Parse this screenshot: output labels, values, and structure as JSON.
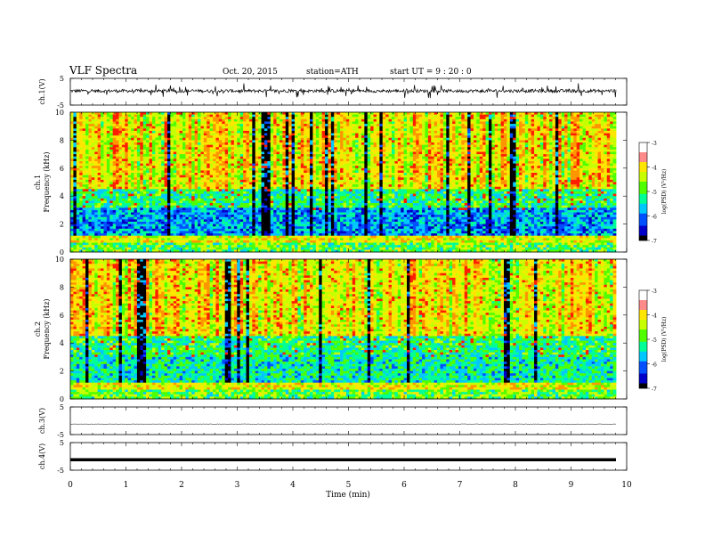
{
  "header": {
    "title": "VLF  Spectra",
    "date": "Oct. 20, 2015",
    "station": "station=ATH",
    "start": "start  UT  =   9 : 20 : 0"
  },
  "chart_data": [
    {
      "type": "line",
      "name": "ch1-waveform",
      "ylabel": "ch.1(V)",
      "ylim": [
        -5,
        5
      ],
      "yticks": [
        "5",
        "-5"
      ],
      "xlim": [
        0,
        10
      ],
      "baseline": 0.3,
      "noise_amplitude": 0.6,
      "spike_amplitude": 2.5
    },
    {
      "type": "heatmap",
      "name": "ch1-spectrogram",
      "ylabel": "ch.1\nFrequency  (kHz)",
      "ylabel_lines": [
        "ch.1",
        "Frequency  (kHz)"
      ],
      "ylim": [
        0,
        10
      ],
      "yticks": [
        "0",
        "2",
        "4",
        "6",
        "8",
        "10"
      ],
      "xlim": [
        0,
        9.8
      ],
      "colorbar": {
        "label": "log(PSD) (V²/Hz)",
        "range": [
          -7,
          -3
        ],
        "ticks": [
          "-3",
          "-4",
          "-5",
          "-6",
          "-7"
        ]
      }
    },
    {
      "type": "heatmap",
      "name": "ch2-spectrogram",
      "ylabel": "ch.2\nFrequency  (kHz)",
      "ylabel_lines": [
        "ch.2",
        "Frequency  (kHz)"
      ],
      "ylim": [
        0,
        10
      ],
      "yticks": [
        "0",
        "2",
        "4",
        "6",
        "8",
        "10"
      ],
      "xlim": [
        0,
        9.8
      ],
      "colorbar": {
        "label": "log(PSD) (V²/Hz)",
        "range": [
          -7,
          -3
        ],
        "ticks": [
          "-3",
          "-4",
          "-5",
          "-6",
          "-7"
        ]
      }
    },
    {
      "type": "line",
      "name": "ch3-waveform",
      "ylabel": "ch.3(V)",
      "ylim": [
        -5,
        5
      ],
      "yticks": [
        "5",
        "-5"
      ],
      "xlim": [
        0,
        9.8
      ],
      "baseline": -1.2,
      "noise_amplitude": 0.08
    },
    {
      "type": "line",
      "name": "ch4-waveform",
      "ylabel": "ch.4(V)",
      "ylim": [
        -5,
        5
      ],
      "yticks": [
        "5",
        "-5"
      ],
      "xlim": [
        0,
        9.8
      ],
      "baseline": -1.2,
      "trace_style": "thick"
    }
  ],
  "xaxis": {
    "label": "Time  (min)",
    "range": [
      0,
      10
    ],
    "ticks": [
      "0",
      "1",
      "2",
      "3",
      "4",
      "5",
      "6",
      "7",
      "8",
      "9",
      "10"
    ]
  },
  "colors": {
    "colormap": [
      "#000000",
      "#0000c8",
      "#0050ff",
      "#00c8ff",
      "#00ff96",
      "#50ff00",
      "#c8ff00",
      "#ffe600",
      "#ff9600",
      "#ff1e00",
      "#ffffff"
    ]
  }
}
